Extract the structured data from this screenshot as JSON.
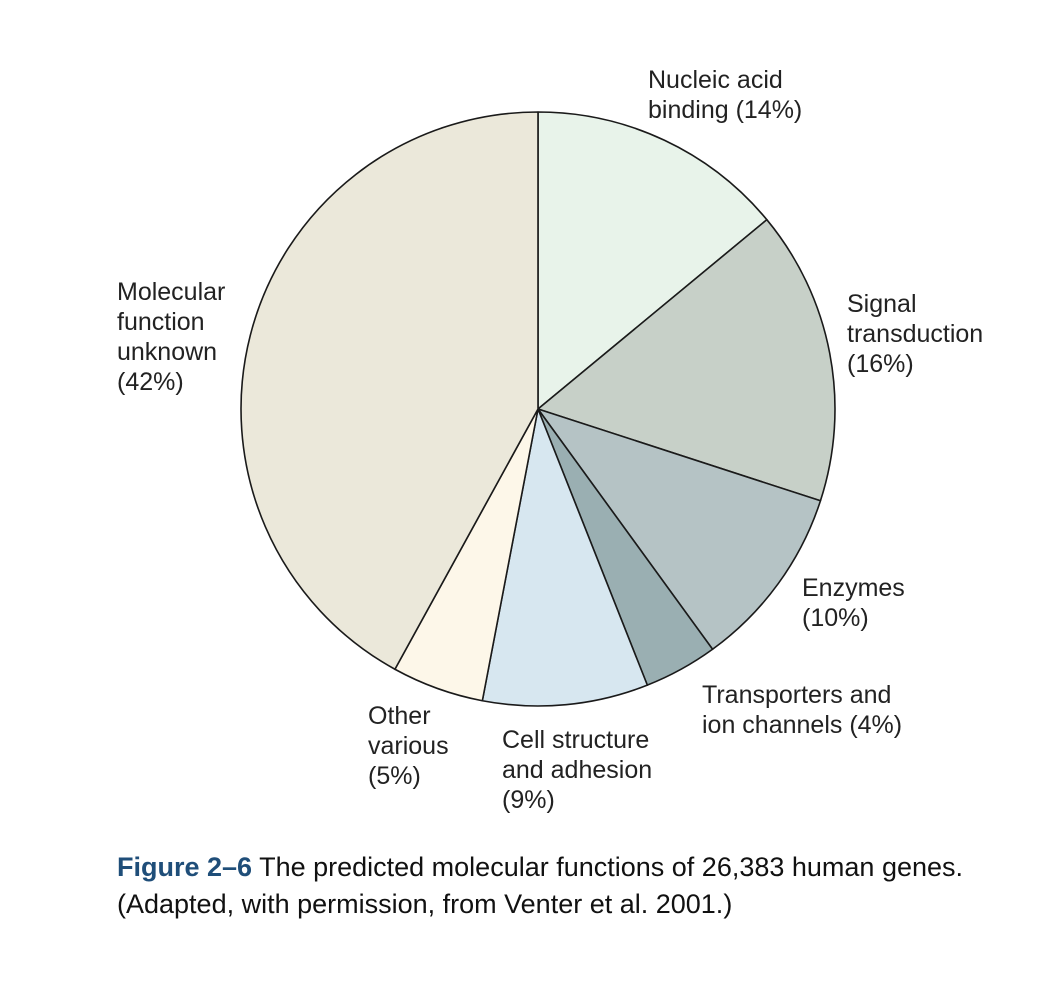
{
  "chart_data": {
    "type": "pie",
    "start_angle_deg": 0,
    "direction": "clockwise",
    "slices": [
      {
        "label_lines": [
          "Nucleic acid",
          "binding (14%)"
        ],
        "value": 14,
        "color": "#e8f3ea"
      },
      {
        "label_lines": [
          "Signal",
          "transduction",
          "(16%)"
        ],
        "value": 16,
        "color": "#c7d0c8"
      },
      {
        "label_lines": [
          "Enzymes",
          "(10%)"
        ],
        "value": 10,
        "color": "#b5c3c5"
      },
      {
        "label_lines": [
          "Transporters and",
          "ion channels (4%)"
        ],
        "value": 4,
        "color": "#9aafb2"
      },
      {
        "label_lines": [
          "Cell structure",
          "and adhesion",
          "(9%)"
        ],
        "value": 9,
        "color": "#d7e7f0"
      },
      {
        "label_lines": [
          "Other",
          "various",
          "(5%)"
        ],
        "value": 5,
        "color": "#fdf7e9"
      },
      {
        "label_lines": [
          "Molecular",
          "function",
          "unknown",
          "(42%)"
        ],
        "value": 42,
        "color": "#ebe8da"
      }
    ],
    "stroke_color": "#1a1a1a"
  },
  "caption": {
    "number": "Figure 2–6",
    "title": "The predicted molecular functions of 26,383 human genes.",
    "note": "(Adapted, with permission, from Venter et al. 2001.)"
  }
}
